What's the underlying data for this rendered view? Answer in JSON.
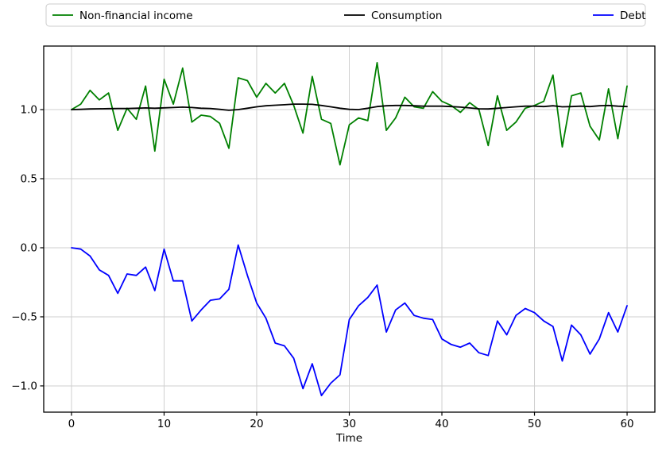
{
  "figure": {
    "xlabel": "Time",
    "legend_entries": [
      "Non-financial income",
      "Consumption",
      "Debt"
    ],
    "colors": {
      "non_financial_income": "#008000",
      "consumption": "#000000",
      "debt": "#0000ff",
      "grid": "#cfcfcf",
      "axis": "#000000",
      "legend_border": "#cccccc",
      "background": "#ffffff"
    }
  },
  "chart_data": {
    "type": "line",
    "title": "",
    "xlabel": "Time",
    "ylabel": "",
    "grid": true,
    "legend_position": "top-outside-horizontal",
    "xlim": [
      -3,
      63
    ],
    "ylim": [
      -1.19,
      1.46
    ],
    "x_tick_values": [
      0,
      10,
      20,
      30,
      40,
      50,
      60
    ],
    "x_tick_labels": [
      "0",
      "10",
      "20",
      "30",
      "40",
      "50",
      "60"
    ],
    "y_tick_values": [
      1.0,
      0.5,
      0.0,
      -0.5,
      -1.0
    ],
    "y_tick_labels": [
      "1.0",
      "0.5",
      "0.0",
      "−0.5",
      "−1.0"
    ],
    "x": [
      0,
      1,
      2,
      3,
      4,
      5,
      6,
      7,
      8,
      9,
      10,
      11,
      12,
      13,
      14,
      15,
      16,
      17,
      18,
      19,
      20,
      21,
      22,
      23,
      24,
      25,
      26,
      27,
      28,
      29,
      30,
      31,
      32,
      33,
      34,
      35,
      36,
      37,
      38,
      39,
      40,
      41,
      42,
      43,
      44,
      45,
      46,
      47,
      48,
      49,
      50,
      51,
      52,
      53,
      54,
      55,
      56,
      57,
      58,
      59,
      60
    ],
    "series": [
      {
        "name": "Non-financial income",
        "color": "#008000",
        "values": [
          1.0,
          1.04,
          1.14,
          1.07,
          1.12,
          0.85,
          1.01,
          0.93,
          1.17,
          0.7,
          1.22,
          1.04,
          1.3,
          0.91,
          0.96,
          0.95,
          0.9,
          0.72,
          1.23,
          1.21,
          1.09,
          1.19,
          1.12,
          1.19,
          1.03,
          0.83,
          1.24,
          0.93,
          0.9,
          0.6,
          0.89,
          0.94,
          0.92,
          1.34,
          0.85,
          0.94,
          1.09,
          1.02,
          1.01,
          1.13,
          1.06,
          1.03,
          0.98,
          1.05,
          1.0,
          0.74,
          1.1,
          0.85,
          0.91,
          1.01,
          1.03,
          1.06,
          1.25,
          0.73,
          1.1,
          1.12,
          0.88,
          0.78,
          1.15,
          0.79,
          1.17
        ]
      },
      {
        "name": "Consumption",
        "color": "#000000",
        "values": [
          1.0,
          1.002,
          1.005,
          1.006,
          1.007,
          1.008,
          1.008,
          1.01,
          1.012,
          1.01,
          1.013,
          1.015,
          1.018,
          1.015,
          1.01,
          1.008,
          1.002,
          0.995,
          1.0,
          1.01,
          1.02,
          1.028,
          1.032,
          1.035,
          1.04,
          1.04,
          1.038,
          1.03,
          1.02,
          1.01,
          1.002,
          1.0,
          1.01,
          1.022,
          1.028,
          1.03,
          1.03,
          1.028,
          1.025,
          1.025,
          1.025,
          1.022,
          1.018,
          1.012,
          1.006,
          1.005,
          1.01,
          1.015,
          1.02,
          1.025,
          1.025,
          1.022,
          1.028,
          1.02,
          1.022,
          1.025,
          1.022,
          1.028,
          1.03,
          1.025,
          1.022
        ]
      },
      {
        "name": "Debt",
        "color": "#0000ff",
        "values": [
          0.0,
          -0.01,
          -0.06,
          -0.16,
          -0.2,
          -0.33,
          -0.19,
          -0.2,
          -0.14,
          -0.31,
          -0.01,
          -0.24,
          -0.24,
          -0.53,
          -0.45,
          -0.38,
          -0.37,
          -0.3,
          0.02,
          -0.2,
          -0.4,
          -0.51,
          -0.69,
          -0.71,
          -0.8,
          -1.02,
          -0.84,
          -1.07,
          -0.98,
          -0.92,
          -0.52,
          -0.42,
          -0.36,
          -0.27,
          -0.61,
          -0.45,
          -0.4,
          -0.49,
          -0.51,
          -0.52,
          -0.66,
          -0.7,
          -0.72,
          -0.69,
          -0.76,
          -0.78,
          -0.53,
          -0.63,
          -0.49,
          -0.44,
          -0.47,
          -0.53,
          -0.57,
          -0.82,
          -0.56,
          -0.63,
          -0.77,
          -0.66,
          -0.47,
          -0.61,
          -0.42
        ]
      }
    ]
  }
}
